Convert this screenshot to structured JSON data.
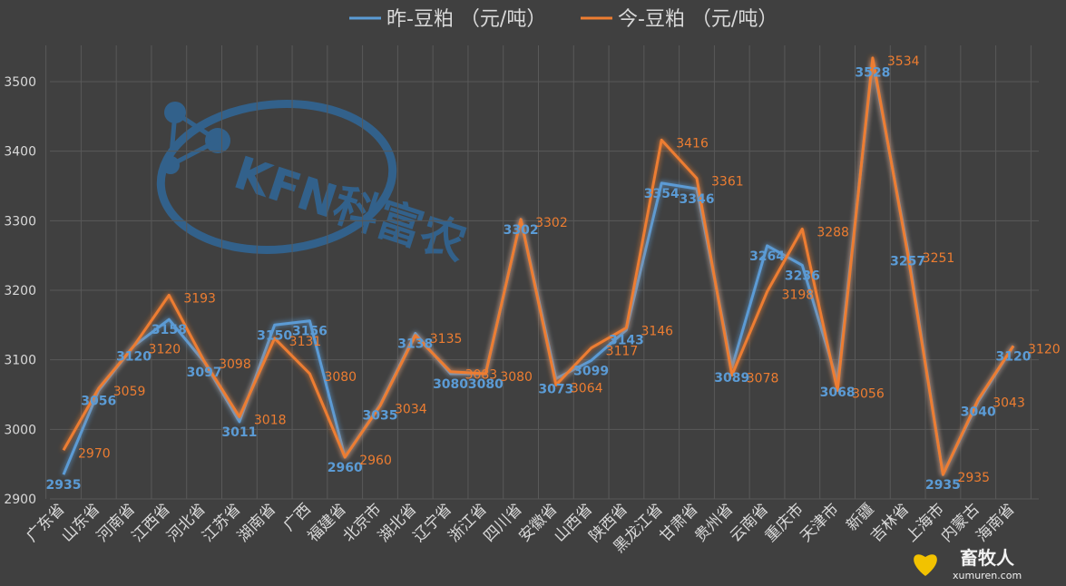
{
  "chart_data": {
    "type": "line",
    "categories": [
      "广东省",
      "山东省",
      "河南省",
      "江西省",
      "河北省",
      "江苏省",
      "湖南省",
      "广西",
      "福建省",
      "北京市",
      "湖北省",
      "辽宁省",
      "浙江省",
      "四川省",
      "安徽省",
      "山西省",
      "陕西省",
      "黑龙江省",
      "甘肃省",
      "贵州省",
      "云南省",
      "重庆市",
      "天津市",
      "新疆",
      "吉林省",
      "上海市",
      "内蒙古",
      "海南省"
    ],
    "series": [
      {
        "name": "昨-豆粕  （元/吨）",
        "color": "#5b9bd5",
        "values": [
          2935,
          3056,
          3120,
          3158,
          3097,
          3011,
          3150,
          3156,
          2960,
          3035,
          3138,
          3080,
          3080,
          3302,
          3073,
          3099,
          3143,
          3354,
          3346,
          3089,
          3264,
          3236,
          3068,
          3528,
          3257,
          2935,
          3040,
          3120
        ],
        "labels": [
          "2935",
          "3056",
          "3120",
          "3158",
          "3097",
          "3011",
          "3150",
          "3156",
          "2960",
          "3035",
          "3138",
          "3080",
          "3080",
          "3302",
          "3073",
          "3099",
          "3143",
          "3354",
          "3346",
          "3089",
          "3264",
          "3236",
          "3068",
          "3528",
          "3257",
          "2935",
          "3040",
          "3120"
        ]
      },
      {
        "name": "今-豆粕  （元/吨）",
        "color": "#ed7d31",
        "values": [
          2970,
          3059,
          3120,
          3193,
          3098,
          3018,
          3131,
          3080,
          2960,
          3034,
          3135,
          3083,
          3080,
          3302,
          3064,
          3117,
          3146,
          3416,
          3361,
          3078,
          3198,
          3288,
          3056,
          3534,
          3251,
          2935,
          3043,
          3120
        ],
        "labels": [
          "2970",
          "3059",
          "3120",
          "3193",
          "3098",
          "3018",
          "3131",
          "3080",
          "2960",
          "3034",
          "3135",
          "3083",
          "3080",
          "3302",
          "3064",
          "3117",
          "3146",
          "3416",
          "3361",
          "3078",
          "3198",
          "3288",
          "3056",
          "3534",
          "3251",
          "2935",
          "3043",
          "3120"
        ]
      }
    ],
    "ylim": [
      2900,
      3550
    ],
    "yticks": [
      "2900",
      "3000",
      "3100",
      "3200",
      "3300",
      "3400",
      "3500"
    ],
    "grid": true,
    "legend": "top"
  },
  "watermark": {
    "text": "KFN科富农"
  },
  "brand": {
    "name": "畜牧人",
    "url": "xumuren.com"
  }
}
